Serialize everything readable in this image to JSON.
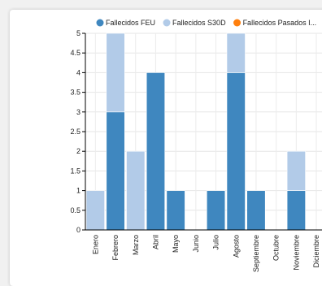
{
  "chart_data": {
    "type": "bar",
    "stacked": true,
    "categories": [
      "Enero",
      "Febrero",
      "Marzo",
      "Abril",
      "Mayo",
      "Junio",
      "Julio",
      "Agosto",
      "Septiembre",
      "Octubre",
      "Noviembre",
      "Diciembre"
    ],
    "series": [
      {
        "name": "Fallecidos FEU",
        "color": "#3f87bf",
        "values": [
          0,
          3,
          0,
          4,
          1,
          0,
          1,
          4,
          1,
          0,
          1,
          0
        ]
      },
      {
        "name": "Fallecidos S30D",
        "color": "#b2cbe8",
        "values": [
          1,
          2,
          2,
          0,
          0,
          0,
          0,
          1,
          0,
          0,
          1,
          0
        ]
      },
      {
        "name": "Fallecidos Pasados I...",
        "color": "#ff7f0e",
        "values": [
          0,
          0,
          0,
          0,
          0,
          0,
          0,
          0,
          0,
          0,
          0,
          0
        ]
      }
    ],
    "yticks": [
      "0",
      "0.5",
      "1",
      "1.5",
      "2",
      "2.5",
      "3",
      "3.5",
      "4",
      "4.5",
      "5"
    ],
    "ylim": [
      0,
      5
    ],
    "grid": true,
    "legend": "top"
  }
}
